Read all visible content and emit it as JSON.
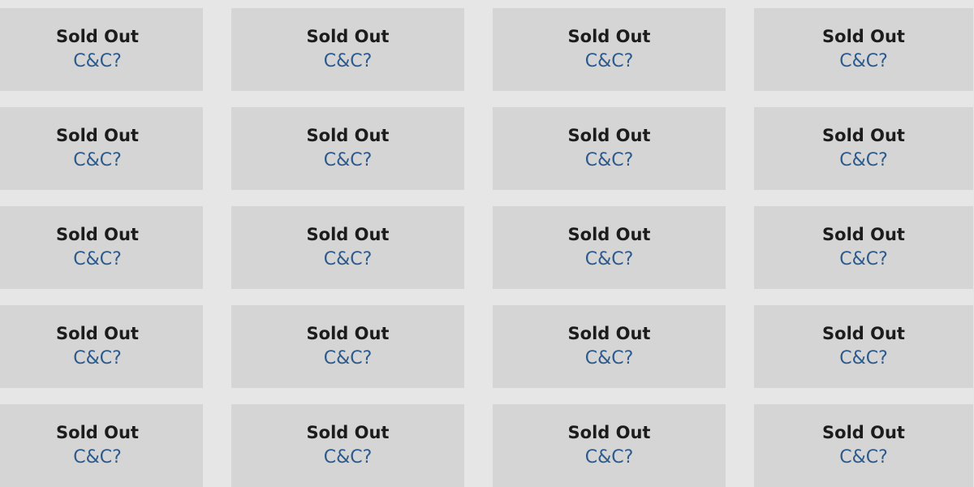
{
  "colors": {
    "status_text": "#1c1c1c",
    "link_text": "#2c5a8c",
    "tile_bg": "#d5d5d5",
    "page_bg": "#e6e6e6"
  },
  "grid": {
    "columns": 4,
    "tiles": [
      {
        "status": "Sold Out",
        "action": "C&C?"
      },
      {
        "status": "Sold Out",
        "action": "C&C?"
      },
      {
        "status": "Sold Out",
        "action": "C&C?"
      },
      {
        "status": "Sold Out",
        "action": "C&C?"
      },
      {
        "status": "Sold Out",
        "action": "C&C?"
      },
      {
        "status": "Sold Out",
        "action": "C&C?"
      },
      {
        "status": "Sold Out",
        "action": "C&C?"
      },
      {
        "status": "Sold Out",
        "action": "C&C?"
      },
      {
        "status": "Sold Out",
        "action": "C&C?"
      },
      {
        "status": "Sold Out",
        "action": "C&C?"
      },
      {
        "status": "Sold Out",
        "action": "C&C?"
      },
      {
        "status": "Sold Out",
        "action": "C&C?"
      },
      {
        "status": "Sold Out",
        "action": "C&C?"
      },
      {
        "status": "Sold Out",
        "action": "C&C?"
      },
      {
        "status": "Sold Out",
        "action": "C&C?"
      },
      {
        "status": "Sold Out",
        "action": "C&C?"
      },
      {
        "status": "Sold Out",
        "action": "C&C?"
      },
      {
        "status": "Sold Out",
        "action": "C&C?"
      },
      {
        "status": "Sold Out",
        "action": "C&C?"
      },
      {
        "status": "Sold Out",
        "action": "C&C?"
      }
    ]
  }
}
